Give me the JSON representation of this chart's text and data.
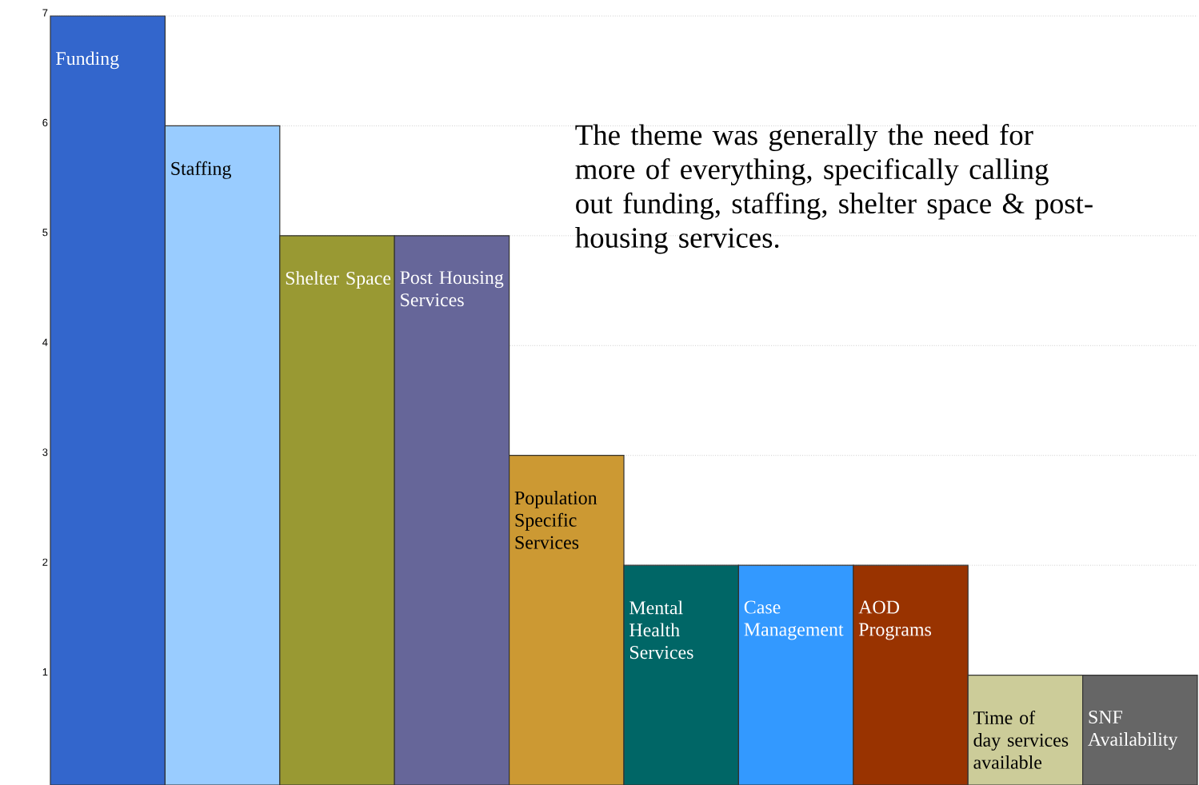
{
  "chart_data": {
    "type": "bar",
    "categories": [
      "Funding",
      "Staffing",
      "Shelter Space",
      "Post Housing Services",
      "Population Specific Services",
      "Mental Health Services",
      "Case Management",
      "AOD Programs",
      "Time of day services available",
      "SNF Availability"
    ],
    "values": [
      7,
      6,
      5,
      5,
      3,
      2,
      2,
      2,
      1,
      1
    ],
    "colors": [
      "#3366cc",
      "#99ccff",
      "#999933",
      "#666699",
      "#cc9933",
      "#006666",
      "#3399ff",
      "#993300",
      "#cccc99",
      "#666666"
    ],
    "ylim": [
      0,
      7
    ],
    "yticks": [
      1,
      2,
      3,
      4,
      5,
      6,
      7
    ],
    "grid": "y",
    "annotations": [
      "The theme was generally the need for more of everything, specifically calling out funding, staffing, shelter space & post-housing services."
    ]
  }
}
